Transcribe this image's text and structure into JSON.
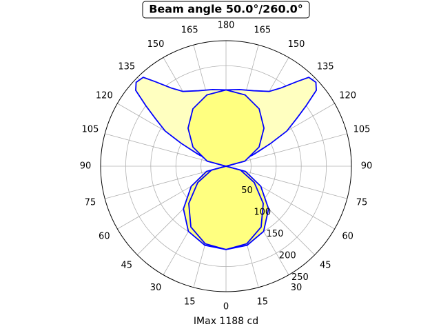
{
  "chart_data": {
    "type": "polar",
    "title": "Beam angle 50.0°/260.0°",
    "xlabel": "IMax 1188 cd",
    "rlim": [
      0,
      250
    ],
    "rticks": [
      50,
      100,
      150,
      200,
      250
    ],
    "thetaticks": [
      {
        "value": 0,
        "label": "0"
      },
      {
        "value": 15,
        "label": "15"
      },
      {
        "value": 30,
        "label": "30"
      },
      {
        "value": 45,
        "label": "45"
      },
      {
        "value": 60,
        "label": "60"
      },
      {
        "value": 75,
        "label": "75"
      },
      {
        "value": 90,
        "label": "90"
      },
      {
        "value": 105,
        "label": "105"
      },
      {
        "value": 120,
        "label": "120"
      },
      {
        "value": 135,
        "label": "135"
      },
      {
        "value": 150,
        "label": "150"
      },
      {
        "value": 165,
        "label": "165"
      },
      {
        "value": 180,
        "label": "180"
      },
      {
        "value": -15,
        "label": "15"
      },
      {
        "value": -30,
        "label": "30"
      },
      {
        "value": -45,
        "label": "45"
      },
      {
        "value": -60,
        "label": "60"
      },
      {
        "value": -75,
        "label": "75"
      },
      {
        "value": -90,
        "label": "90"
      },
      {
        "value": -105,
        "label": "105"
      },
      {
        "value": -120,
        "label": "120"
      },
      {
        "value": -135,
        "label": "135"
      },
      {
        "value": -150,
        "label": "150"
      },
      {
        "value": -165,
        "label": "165"
      }
    ],
    "grid": true,
    "series": [
      {
        "color": "#0000ff",
        "fill": "#ffffc0",
        "theta": [
          90,
          105,
          113,
          117,
          120,
          124,
          127,
          130,
          133,
          137,
          140,
          145,
          150,
          160,
          170,
          180,
          -170,
          -160,
          -150,
          -145,
          -140,
          -137,
          -133,
          -130,
          -127,
          -124,
          -120,
          -117,
          -113,
          -105,
          -90
        ],
        "r": [
          0,
          20,
          60,
          100,
          140,
          170,
          200,
          235,
          245,
          242,
          220,
          190,
          172,
          160,
          155,
          152,
          155,
          160,
          172,
          190,
          220,
          242,
          245,
          235,
          200,
          170,
          140,
          100,
          60,
          20,
          0
        ]
      },
      {
        "color": "#0000ff",
        "fill": "#ffff80",
        "theta": [
          90,
          105,
          120,
          135,
          150,
          165,
          180,
          -165,
          -150,
          -135,
          -120,
          -105,
          -90
        ],
        "r": [
          0,
          39,
          76,
          107,
          132,
          147,
          152,
          147,
          132,
          107,
          76,
          39,
          0
        ]
      },
      {
        "color": "#0000ff",
        "fill": "#ffff80",
        "theta": [
          -90,
          -75,
          -60,
          -45,
          -30,
          -15,
          0,
          15,
          30,
          45,
          60,
          75,
          90
        ],
        "r": [
          0,
          40,
          80,
          120,
          150,
          163,
          166,
          163,
          150,
          120,
          80,
          40,
          0
        ]
      },
      {
        "color": "#0000ff",
        "theta": [
          -90,
          -75,
          -60,
          -45,
          -30,
          -15,
          0,
          15,
          30,
          45,
          60,
          75,
          90
        ],
        "r": [
          0,
          30,
          65,
          105,
          140,
          160,
          166,
          160,
          140,
          105,
          65,
          30,
          0
        ]
      }
    ]
  }
}
